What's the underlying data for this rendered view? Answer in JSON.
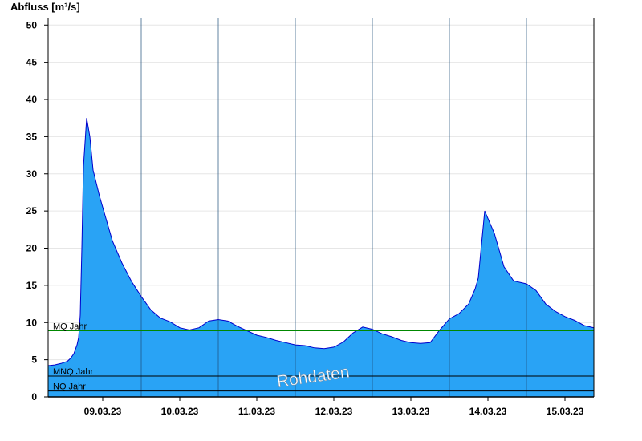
{
  "chart_data": {
    "type": "area",
    "title": "",
    "ylabel": "Abfluss [m³/s]",
    "xlabel": "",
    "ylim": [
      0,
      51
    ],
    "yticks": [
      0,
      5,
      10,
      15,
      20,
      25,
      30,
      35,
      40,
      45,
      50
    ],
    "x_tick_labels": [
      "09.03.23",
      "10.03.23",
      "11.03.23",
      "12.03.23",
      "13.03.23",
      "14.03.23",
      "15.03.23"
    ],
    "x_range": [
      "08.03.23 19:00",
      "15.03.23 21:00"
    ],
    "grid": "horizontal",
    "colors": {
      "fill": "#29a3f5",
      "line": "#0000cc",
      "mq": "#008800",
      "ref": "#000000"
    },
    "reference_lines": [
      {
        "label": "MQ Jahr",
        "value": 8.9
      },
      {
        "label": "MNQ Jahr",
        "value": 2.8
      },
      {
        "label": "NQ Jahr",
        "value": 0.8
      }
    ],
    "watermark": "Rohdaten",
    "series": [
      {
        "x": [
          "08.03.23 19:00",
          "08.03.23 21:00",
          "08.03.23 23:00",
          "09.03.23 01:00",
          "09.03.23 02:00",
          "09.03.23 03:00",
          "09.03.23 04:00",
          "09.03.23 04:30",
          "09.03.23 05:00",
          "09.03.23 05:30",
          "09.03.23 06:00",
          "09.03.23 07:00",
          "09.03.23 08:00",
          "09.03.23 09:00",
          "09.03.23 11:00",
          "09.03.23 13:00",
          "09.03.23 15:00",
          "09.03.23 18:00",
          "09.03.23 21:00",
          "10.03.23 00:00",
          "10.03.23 03:00",
          "10.03.23 06:00",
          "10.03.23 09:00",
          "10.03.23 12:00",
          "10.03.23 15:00",
          "10.03.23 18:00",
          "10.03.23 21:00",
          "11.03.23 00:00",
          "11.03.23 03:00",
          "11.03.23 06:00",
          "11.03.23 09:00",
          "11.03.23 12:00",
          "11.03.23 15:00",
          "11.03.23 18:00",
          "11.03.23 21:00",
          "12.03.23 00:00",
          "12.03.23 03:00",
          "12.03.23 06:00",
          "12.03.23 09:00",
          "12.03.23 12:00",
          "12.03.23 15:00",
          "12.03.23 18:00",
          "12.03.23 21:00",
          "13.03.23 00:00",
          "13.03.23 03:00",
          "13.03.23 06:00",
          "13.03.23 09:00",
          "13.03.23 12:00",
          "13.03.23 15:00",
          "13.03.23 18:00",
          "13.03.23 21:00",
          "14.03.23 00:00",
          "14.03.23 03:00",
          "14.03.23 06:00",
          "14.03.23 08:00",
          "14.03.23 09:00",
          "14.03.23 11:00",
          "14.03.23 14:00",
          "14.03.23 17:00",
          "14.03.23 20:00",
          "15.03.23 00:00",
          "15.03.23 03:00",
          "15.03.23 06:00",
          "15.03.23 09:00",
          "15.03.23 12:00",
          "15.03.23 15:00",
          "15.03.23 18:00",
          "15.03.23 21:00"
        ],
        "y": [
          4.2,
          4.3,
          4.5,
          4.8,
          5.2,
          5.8,
          7.0,
          8.0,
          11.0,
          20.0,
          31.0,
          37.5,
          35.0,
          30.5,
          27.0,
          24.0,
          21.0,
          18.0,
          15.5,
          13.5,
          11.7,
          10.6,
          10.1,
          9.3,
          9.0,
          9.3,
          10.2,
          10.4,
          10.2,
          9.5,
          8.9,
          8.3,
          8.0,
          7.6,
          7.3,
          7.0,
          6.9,
          6.6,
          6.5,
          6.7,
          7.4,
          8.6,
          9.4,
          9.1,
          8.5,
          8.1,
          7.6,
          7.3,
          7.2,
          7.3,
          9.0,
          10.5,
          11.2,
          12.5,
          14.5,
          16.0,
          25.0,
          22.0,
          17.5,
          15.6,
          15.2,
          14.3,
          12.5,
          11.5,
          10.8,
          10.3,
          9.6,
          9.3
        ]
      }
    ]
  }
}
